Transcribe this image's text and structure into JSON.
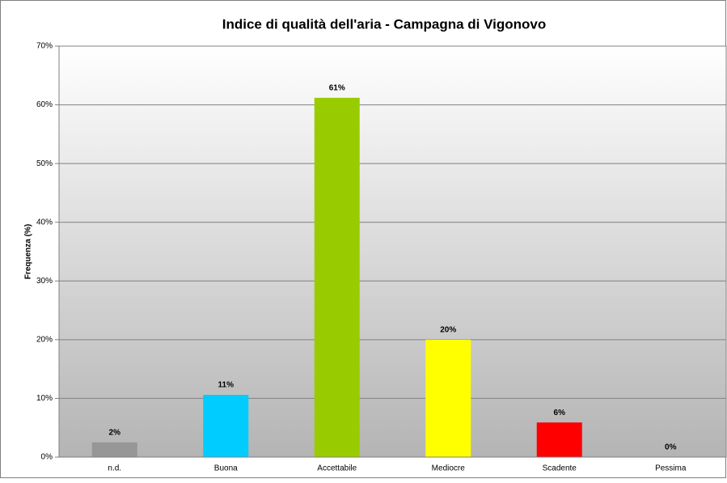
{
  "chart_data": {
    "type": "bar",
    "title": "Indice di qualità dell'aria - Campagna di Vigonovo",
    "y_axis_label": "Frequenza (%)",
    "categories": [
      "n.d.",
      "Buona",
      "Accettabile",
      "Mediocre",
      "Scadente",
      "Pessima"
    ],
    "values": [
      2.5,
      10.6,
      61.2,
      20.0,
      5.9,
      0
    ],
    "value_labels": [
      "2%",
      "11%",
      "61%",
      "20%",
      "6%",
      "0%"
    ],
    "colors": [
      "#969696",
      "#00ccff",
      "#99cc00",
      "#ffff00",
      "#ff0000",
      "#7f7f7f"
    ],
    "ylim": [
      0,
      70
    ],
    "yticks": [
      {
        "value": 0,
        "label": "0%"
      },
      {
        "value": 10,
        "label": "10%"
      },
      {
        "value": 20,
        "label": "20%"
      },
      {
        "value": 30,
        "label": "30%"
      },
      {
        "value": 40,
        "label": "40%"
      },
      {
        "value": 50,
        "label": "50%"
      },
      {
        "value": 60,
        "label": "60%"
      },
      {
        "value": 70,
        "label": "70%"
      }
    ],
    "grid": true
  }
}
